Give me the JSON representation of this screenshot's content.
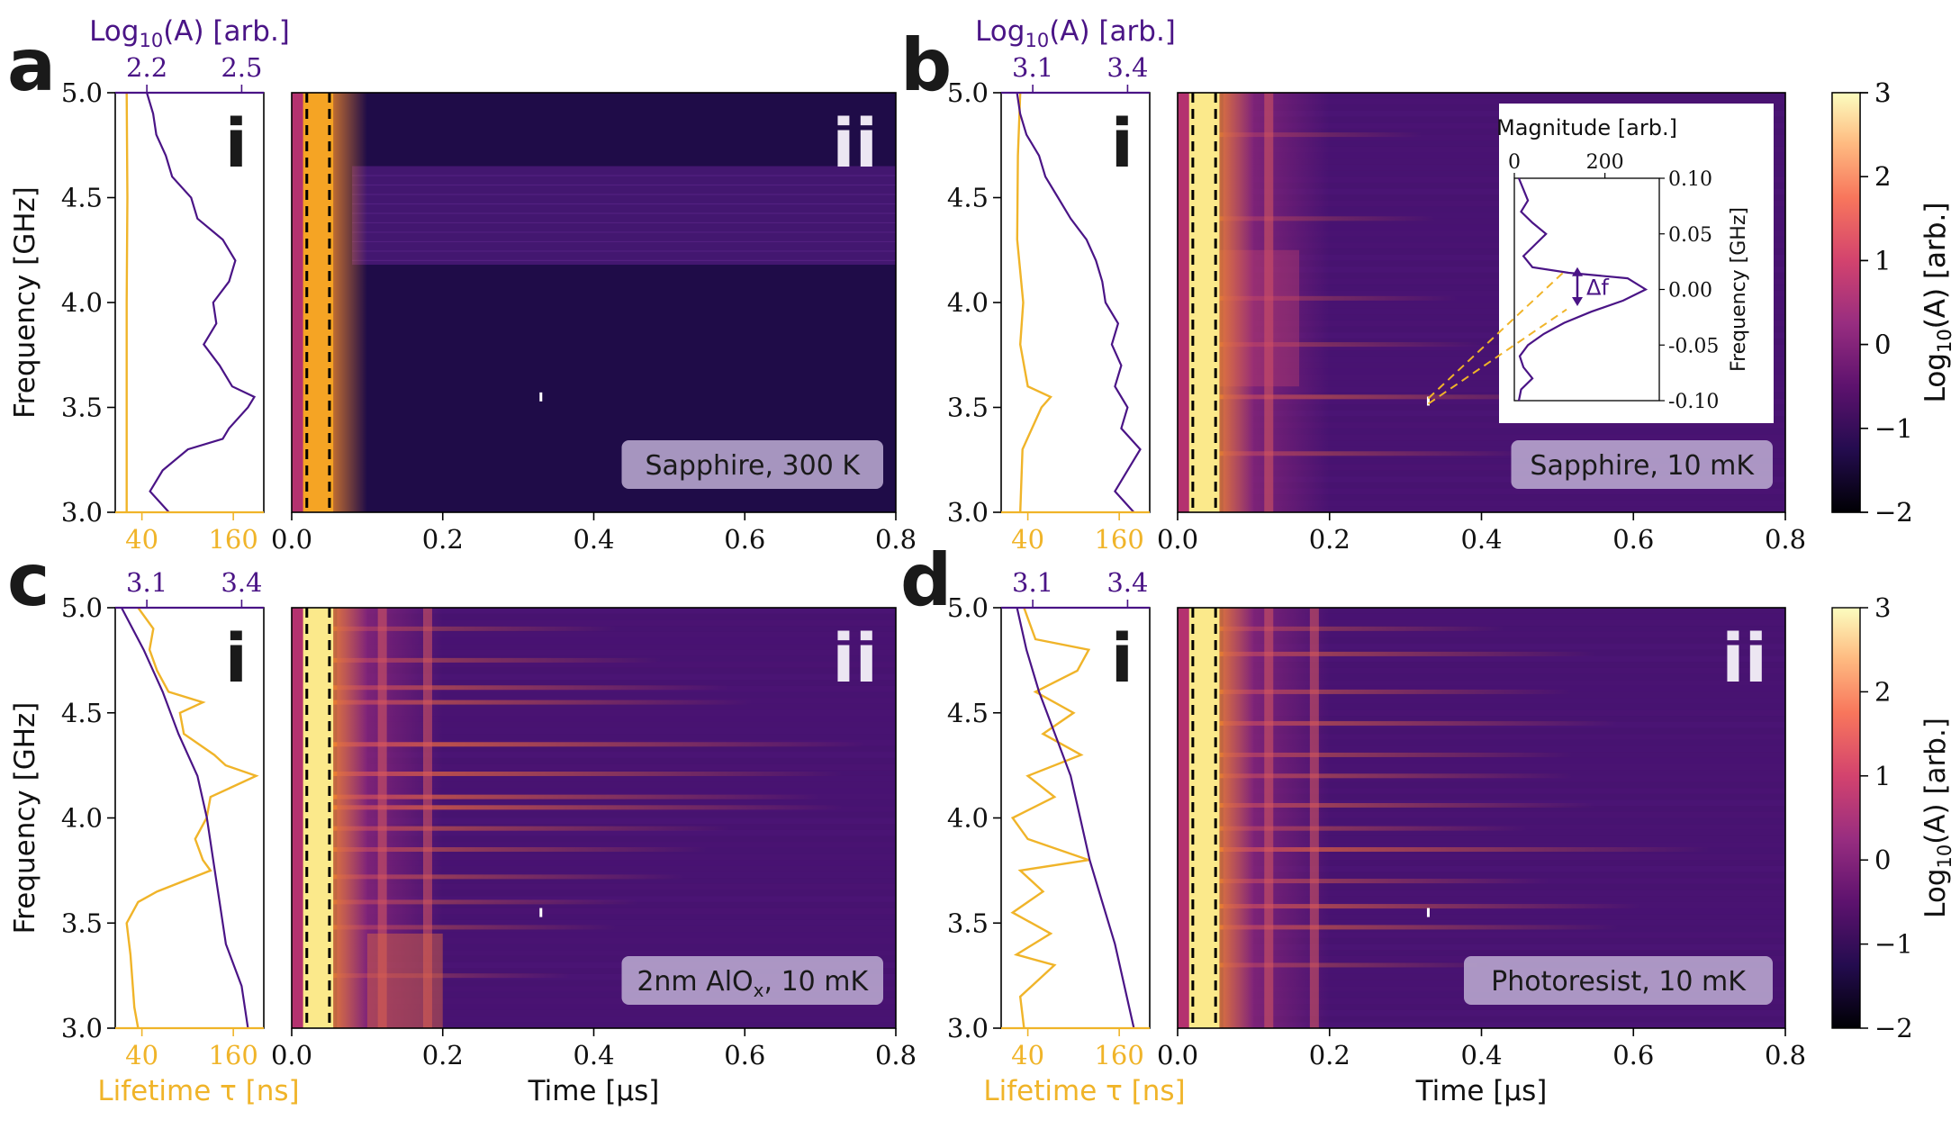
{
  "chart_data": [
    {
      "type": "heatmap",
      "panel": "a",
      "sample_label": "Sapphire, 300 K",
      "subpanels": [
        "i",
        "ii"
      ],
      "xlabel": "Time [μs]",
      "ylabel": "Frequency [GHz]",
      "xlim": [
        0.0,
        0.8
      ],
      "ylim": [
        3.0,
        5.0
      ],
      "xticks": [
        "0.0",
        "0.2",
        "0.4",
        "0.6",
        "0.8"
      ],
      "yticks": [
        "3.0",
        "3.5",
        "4.0",
        "4.5",
        "5.0"
      ],
      "marker_time_us": 0.33,
      "marker_freq_ghz": 3.55,
      "dashed_lines_us": [
        0.02,
        0.05
      ],
      "side_plot": {
        "top_xlabel": "Log10(A) [arb.]",
        "top_ticks": [
          "2.2",
          "2.5"
        ],
        "bottom_ticks": [
          "40",
          "160"
        ],
        "amplitude_log10": [
          [
            3.0,
            2.27
          ],
          [
            3.1,
            2.21
          ],
          [
            3.2,
            2.25
          ],
          [
            3.3,
            2.33
          ],
          [
            3.35,
            2.44
          ],
          [
            3.4,
            2.46
          ],
          [
            3.5,
            2.52
          ],
          [
            3.55,
            2.54
          ],
          [
            3.6,
            2.47
          ],
          [
            3.7,
            2.43
          ],
          [
            3.8,
            2.38
          ],
          [
            3.9,
            2.42
          ],
          [
            4.0,
            2.41
          ],
          [
            4.1,
            2.46
          ],
          [
            4.2,
            2.48
          ],
          [
            4.3,
            2.44
          ],
          [
            4.4,
            2.36
          ],
          [
            4.5,
            2.34
          ],
          [
            4.6,
            2.28
          ],
          [
            4.7,
            2.26
          ],
          [
            4.8,
            2.23
          ],
          [
            4.9,
            2.22
          ],
          [
            5.0,
            2.2
          ]
        ],
        "lifetime_ns": [
          [
            3.0,
            20
          ],
          [
            3.5,
            20
          ],
          [
            4.0,
            20
          ],
          [
            4.5,
            21
          ],
          [
            5.0,
            20
          ]
        ]
      }
    },
    {
      "type": "heatmap",
      "panel": "b",
      "sample_label": "Sapphire, 10 mK",
      "subpanels": [
        "i",
        "ii"
      ],
      "xlabel": "Time [μs]",
      "ylabel": "Frequency [GHz]",
      "xlim": [
        0.0,
        0.8
      ],
      "ylim": [
        3.0,
        5.0
      ],
      "xticks": [
        "0.0",
        "0.2",
        "0.4",
        "0.6",
        "0.8"
      ],
      "yticks": [
        "3.0",
        "3.5",
        "4.0",
        "4.5",
        "5.0"
      ],
      "marker_time_us": 0.33,
      "marker_freq_ghz": 3.53,
      "dashed_lines_us": [
        0.02,
        0.05
      ],
      "side_plot": {
        "top_xlabel": "Log10(A) [arb.]",
        "top_ticks": [
          "3.1",
          "3.4"
        ],
        "bottom_ticks": [
          "40",
          "160"
        ],
        "amplitude_log10": [
          [
            3.0,
            3.42
          ],
          [
            3.1,
            3.36
          ],
          [
            3.2,
            3.4
          ],
          [
            3.3,
            3.44
          ],
          [
            3.4,
            3.38
          ],
          [
            3.5,
            3.4
          ],
          [
            3.6,
            3.36
          ],
          [
            3.7,
            3.38
          ],
          [
            3.8,
            3.35
          ],
          [
            3.9,
            3.37
          ],
          [
            4.0,
            3.33
          ],
          [
            4.1,
            3.32
          ],
          [
            4.2,
            3.3
          ],
          [
            4.3,
            3.27
          ],
          [
            4.4,
            3.22
          ],
          [
            4.5,
            3.18
          ],
          [
            4.6,
            3.14
          ],
          [
            4.7,
            3.12
          ],
          [
            4.8,
            3.08
          ],
          [
            4.9,
            3.06
          ],
          [
            5.0,
            3.05
          ]
        ],
        "lifetime_ns": [
          [
            3.0,
            30
          ],
          [
            3.3,
            33
          ],
          [
            3.5,
            58
          ],
          [
            3.55,
            70
          ],
          [
            3.6,
            40
          ],
          [
            3.8,
            30
          ],
          [
            4.0,
            34
          ],
          [
            4.3,
            26
          ],
          [
            4.7,
            27
          ],
          [
            5.0,
            30
          ]
        ]
      },
      "inset": {
        "xlabel": "Magnitude [arb.]",
        "ylabel": "Frequency [GHz]",
        "xticks": [
          "0",
          "200"
        ],
        "yticks": [
          "-0.10",
          "-0.05",
          "0.00",
          "0.05",
          "0.10"
        ],
        "annotation": "Δf",
        "magnitude_vs_freq": [
          [
            -0.1,
            10
          ],
          [
            -0.09,
            15
          ],
          [
            -0.08,
            40
          ],
          [
            -0.07,
            20
          ],
          [
            -0.06,
            12
          ],
          [
            -0.05,
            30
          ],
          [
            -0.04,
            65
          ],
          [
            -0.03,
            110
          ],
          [
            -0.02,
            170
          ],
          [
            -0.01,
            240
          ],
          [
            0.0,
            290
          ],
          [
            0.01,
            250
          ],
          [
            0.015,
            120
          ],
          [
            0.02,
            40
          ],
          [
            0.03,
            20
          ],
          [
            0.04,
            45
          ],
          [
            0.05,
            70
          ],
          [
            0.06,
            40
          ],
          [
            0.07,
            15
          ],
          [
            0.08,
            30
          ],
          [
            0.09,
            20
          ],
          [
            0.1,
            10
          ]
        ]
      }
    },
    {
      "type": "heatmap",
      "panel": "c",
      "sample_label_main": "2nm AlO",
      "sample_label_sub": "x",
      "sample_label_tail": ", 10 mK",
      "subpanels": [
        "i",
        "ii"
      ],
      "xlabel": "Time [μs]",
      "ylabel": "Frequency [GHz]",
      "xlim": [
        0.0,
        0.8
      ],
      "ylim": [
        3.0,
        5.0
      ],
      "xticks": [
        "0.0",
        "0.2",
        "0.4",
        "0.6",
        "0.8"
      ],
      "yticks": [
        "3.0",
        "3.5",
        "4.0",
        "4.5",
        "5.0"
      ],
      "marker_time_us": 0.33,
      "marker_freq_ghz": 3.55,
      "dashed_lines_us": [
        0.02,
        0.05
      ],
      "side_plot": {
        "top_ticks": [
          "3.1",
          "3.4"
        ],
        "bottom_xlabel": "Lifetime τ [ns]",
        "bottom_ticks": [
          "40",
          "160"
        ],
        "amplitude_log10": [
          [
            3.0,
            3.42
          ],
          [
            3.2,
            3.4
          ],
          [
            3.4,
            3.35
          ],
          [
            3.6,
            3.33
          ],
          [
            3.8,
            3.31
          ],
          [
            4.0,
            3.29
          ],
          [
            4.2,
            3.26
          ],
          [
            4.4,
            3.2
          ],
          [
            4.6,
            3.15
          ],
          [
            4.8,
            3.09
          ],
          [
            5.0,
            3.02
          ]
        ],
        "lifetime_ns": [
          [
            3.0,
            35
          ],
          [
            3.1,
            30
          ],
          [
            3.2,
            28
          ],
          [
            3.35,
            25
          ],
          [
            3.5,
            20
          ],
          [
            3.6,
            35
          ],
          [
            3.65,
            60
          ],
          [
            3.75,
            130
          ],
          [
            3.8,
            120
          ],
          [
            3.9,
            110
          ],
          [
            4.0,
            125
          ],
          [
            4.1,
            130
          ],
          [
            4.2,
            190
          ],
          [
            4.25,
            150
          ],
          [
            4.3,
            135
          ],
          [
            4.4,
            95
          ],
          [
            4.5,
            90
          ],
          [
            4.55,
            120
          ],
          [
            4.6,
            75
          ],
          [
            4.7,
            60
          ],
          [
            4.8,
            50
          ],
          [
            4.9,
            55
          ],
          [
            5.0,
            35
          ]
        ]
      }
    },
    {
      "type": "heatmap",
      "panel": "d",
      "sample_label": "Photoresist, 10 mK",
      "subpanels": [
        "i",
        "ii"
      ],
      "xlabel": "Time [μs]",
      "ylabel": "Frequency [GHz]",
      "xlim": [
        0.0,
        0.8
      ],
      "ylim": [
        3.0,
        5.0
      ],
      "xticks": [
        "0.0",
        "0.2",
        "0.4",
        "0.6",
        "0.8"
      ],
      "yticks": [
        "3.0",
        "3.5",
        "4.0",
        "4.5",
        "5.0"
      ],
      "marker_time_us": 0.33,
      "marker_freq_ghz": 3.55,
      "dashed_lines_us": [
        0.02,
        0.05
      ],
      "side_plot": {
        "top_ticks": [
          "3.1",
          "3.4"
        ],
        "bottom_xlabel": "Lifetime τ [ns]",
        "bottom_ticks": [
          "40",
          "160"
        ],
        "amplitude_log10": [
          [
            3.0,
            3.42
          ],
          [
            3.2,
            3.39
          ],
          [
            3.4,
            3.36
          ],
          [
            3.6,
            3.32
          ],
          [
            3.8,
            3.28
          ],
          [
            4.0,
            3.25
          ],
          [
            4.2,
            3.22
          ],
          [
            4.4,
            3.17
          ],
          [
            4.6,
            3.12
          ],
          [
            4.8,
            3.08
          ],
          [
            5.0,
            3.05
          ]
        ],
        "lifetime_ns": [
          [
            3.0,
            35
          ],
          [
            3.15,
            30
          ],
          [
            3.3,
            75
          ],
          [
            3.35,
            25
          ],
          [
            3.45,
            70
          ],
          [
            3.55,
            20
          ],
          [
            3.65,
            60
          ],
          [
            3.75,
            30
          ],
          [
            3.8,
            120
          ],
          [
            3.9,
            40
          ],
          [
            4.0,
            20
          ],
          [
            4.1,
            75
          ],
          [
            4.2,
            40
          ],
          [
            4.3,
            110
          ],
          [
            4.4,
            60
          ],
          [
            4.5,
            100
          ],
          [
            4.6,
            50
          ],
          [
            4.7,
            105
          ],
          [
            4.8,
            120
          ],
          [
            4.85,
            50
          ],
          [
            4.95,
            40
          ],
          [
            5.0,
            35
          ]
        ]
      }
    }
  ],
  "colorbar": {
    "label": "Log10(A) [arb.]",
    "ticks": [
      "3",
      "2",
      "1",
      "0",
      "−1",
      "−2"
    ],
    "range": [
      -2,
      3
    ]
  },
  "labels": {
    "log_axis_base": "Log",
    "log_axis_sub": "10",
    "log_axis_rest": "(A) [arb.]",
    "lifetime": "Lifetime τ [ns]",
    "freq": "Frequency [GHz]",
    "time": "Time [μs]",
    "sub_i": "i",
    "sub_ii": "ii",
    "inset_delta": "Δf"
  },
  "colors": {
    "purple": "#4a1486",
    "orange": "#f0b429",
    "dark_bg": "#1f0c48",
    "mid_bg": "#4e1577"
  }
}
